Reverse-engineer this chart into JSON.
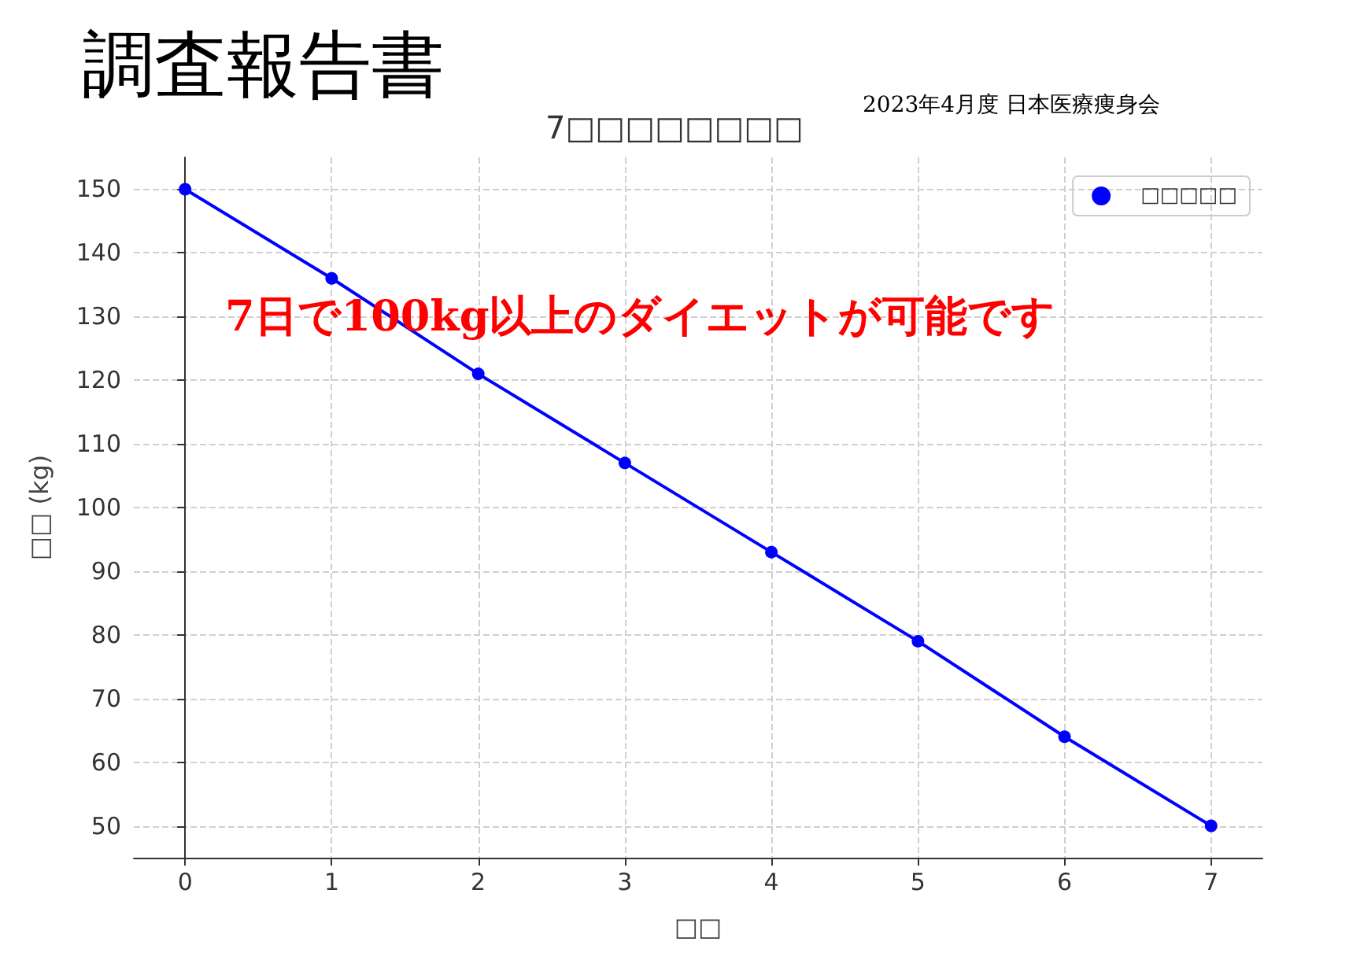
{
  "chart_data": {
    "type": "line",
    "title": "7□□□□□□□□",
    "xlabel": "□□",
    "ylabel": "□□ (kg)",
    "annotations": [
      "調査報告書",
      "2023年4月度 日本医療痩身会",
      "7日で100kg以上のダイエットが可能です"
    ],
    "x": [
      0,
      1,
      2,
      3,
      4,
      5,
      6,
      7
    ],
    "series": [
      {
        "name": "□□□□□",
        "color": "#0000ff",
        "values": [
          150,
          136,
          121,
          107,
          93,
          79,
          64,
          50
        ]
      }
    ],
    "xlim": [
      -0.35,
      7.35
    ],
    "xticks": [
      0,
      1,
      2,
      3,
      4,
      5,
      6,
      7
    ],
    "ylim": [
      45,
      155
    ],
    "yticks": [
      50,
      60,
      70,
      80,
      90,
      100,
      110,
      120,
      130,
      140,
      150
    ],
    "grid": true,
    "legend": "top right",
    "marker": "circle",
    "line_style": "solid"
  }
}
